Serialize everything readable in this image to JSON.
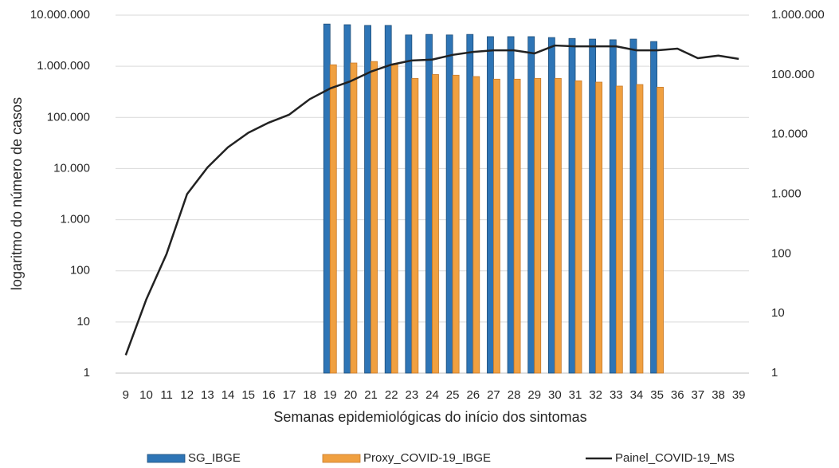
{
  "chart_data": {
    "type": "bar",
    "y_label": "logaritmo do número de casos",
    "x_label": "Semanas epidemiológicas do início dos sintomas",
    "log_scale": true,
    "grid": true,
    "legend": "bottom",
    "categories": [
      "9",
      "10",
      "11",
      "12",
      "13",
      "14",
      "15",
      "16",
      "17",
      "18",
      "19",
      "20",
      "21",
      "22",
      "23",
      "24",
      "25",
      "26",
      "27",
      "28",
      "29",
      "30",
      "31",
      "32",
      "33",
      "34",
      "35",
      "36",
      "37",
      "38",
      "39"
    ],
    "ylim": [
      1,
      10000000
    ],
    "yticks": [
      1,
      10,
      100,
      {
        "value": 1000,
        "label": "1.000"
      },
      {
        "value": 10000,
        "label": "10.000"
      },
      {
        "value": 100000,
        "label": "100.000"
      },
      {
        "value": 1000000,
        "label": "1.000.000"
      },
      {
        "value": 10000000,
        "label": "10.000.000"
      }
    ],
    "y2lim": [
      1,
      1000000
    ],
    "y2ticks": [
      1,
      10,
      100,
      {
        "value": 1000,
        "label": "1.000"
      },
      {
        "value": 10000,
        "label": "10.000"
      },
      {
        "value": 100000,
        "label": "100.000"
      },
      {
        "value": 1000000,
        "label": "1.000.000"
      }
    ],
    "series": [
      {
        "name": "SG_IBGE",
        "type": "bar",
        "color": "#2e75b6",
        "values": [
          null,
          null,
          null,
          null,
          null,
          null,
          null,
          null,
          null,
          null,
          6700000,
          6500000,
          6300000,
          6300000,
          4100000,
          4200000,
          4100000,
          4200000,
          3800000,
          3800000,
          3800000,
          3650000,
          3500000,
          3400000,
          3300000,
          3400000,
          3050000,
          null,
          null,
          null,
          null
        ]
      },
      {
        "name": "Proxy_COVID-19_IBGE",
        "type": "bar",
        "color": "#f0a040",
        "values": [
          null,
          null,
          null,
          null,
          null,
          null,
          null,
          null,
          null,
          null,
          1070000,
          1160000,
          1240000,
          1100000,
          580000,
          690000,
          670000,
          630000,
          560000,
          560000,
          580000,
          580000,
          520000,
          490000,
          410000,
          440000,
          390000,
          null,
          null,
          null,
          null
        ]
      },
      {
        "name": "Painel_COVID-19_MS",
        "type": "line",
        "axis": "y2",
        "color": "#222222",
        "values": [
          2,
          17,
          100,
          1000,
          2800,
          6100,
          10700,
          15800,
          21500,
          39000,
          59000,
          78000,
          113000,
          148000,
          174000,
          180000,
          216000,
          242000,
          257000,
          257000,
          228000,
          310000,
          300000,
          300000,
          300000,
          257000,
          257000,
          275000,
          190000,
          210000,
          185000
        ]
      }
    ]
  }
}
